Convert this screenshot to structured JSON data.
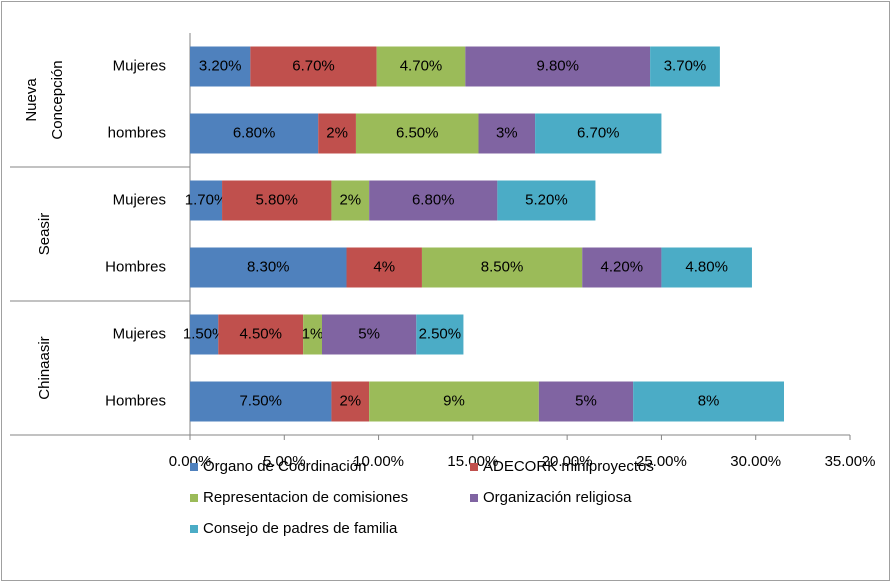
{
  "chart_data": {
    "type": "stacked_bar_horizontal",
    "groups": [
      {
        "label": [
          "Nueva",
          "Concepción"
        ],
        "categories": [
          "Mujeres",
          "hombres"
        ]
      },
      {
        "label": [
          "Seasir"
        ],
        "categories": [
          "Mujeres",
          "Hombres"
        ]
      },
      {
        "label": [
          "Chinaasir"
        ],
        "categories": [
          "Mujeres",
          "Hombres"
        ]
      }
    ],
    "series": [
      {
        "name": "Órgano de Coordinación",
        "color": "#4f81bd",
        "values": [
          3.2,
          6.8,
          1.7,
          8.3,
          1.5,
          7.5
        ],
        "value_labels": [
          "3.20%",
          "6.80%",
          "1.70%",
          "8.30%",
          "1.50%",
          "7.50%"
        ]
      },
      {
        "name": "ADECORK miniproyectos",
        "color": "#c0504d",
        "values": [
          6.7,
          2,
          5.8,
          4,
          4.5,
          2
        ],
        "value_labels": [
          "6.70%",
          "2%",
          "5.80%",
          "4%",
          "4.50%",
          "2%"
        ]
      },
      {
        "name": "Representacion de comisiones",
        "color": "#9bbb59",
        "values": [
          4.7,
          6.5,
          2,
          8.5,
          1,
          9
        ],
        "value_labels": [
          "4.70%",
          "6.50%",
          "2%",
          "8.50%",
          "1%",
          "9%"
        ]
      },
      {
        "name": "Organización religiosa",
        "color": "#8064a2",
        "values": [
          9.8,
          3,
          6.8,
          4.2,
          5,
          5
        ],
        "value_labels": [
          "9.80%",
          "3%",
          "6.80%",
          "4.20%",
          "5%",
          "5%"
        ]
      },
      {
        "name": "Consejo de padres de familia",
        "color": "#4bacc6",
        "values": [
          3.7,
          6.7,
          5.2,
          4.8,
          2.5,
          8
        ],
        "value_labels": [
          "3.70%",
          "6.70%",
          "5.20%",
          "4.80%",
          "2.50%",
          "8%"
        ]
      }
    ],
    "xlim": [
      0,
      35
    ],
    "xticks": [
      {
        "value": 0,
        "label": "0.00%"
      },
      {
        "value": 5,
        "label": "5.00%"
      },
      {
        "value": 10,
        "label": "10.00%"
      },
      {
        "value": 15,
        "label": "15.00%"
      },
      {
        "value": 20,
        "label": "20.00%"
      },
      {
        "value": 25,
        "label": "25.00%"
      },
      {
        "value": 30,
        "label": "30.00%"
      },
      {
        "value": 35,
        "label": "35.00%"
      }
    ],
    "legend": "bottom"
  }
}
